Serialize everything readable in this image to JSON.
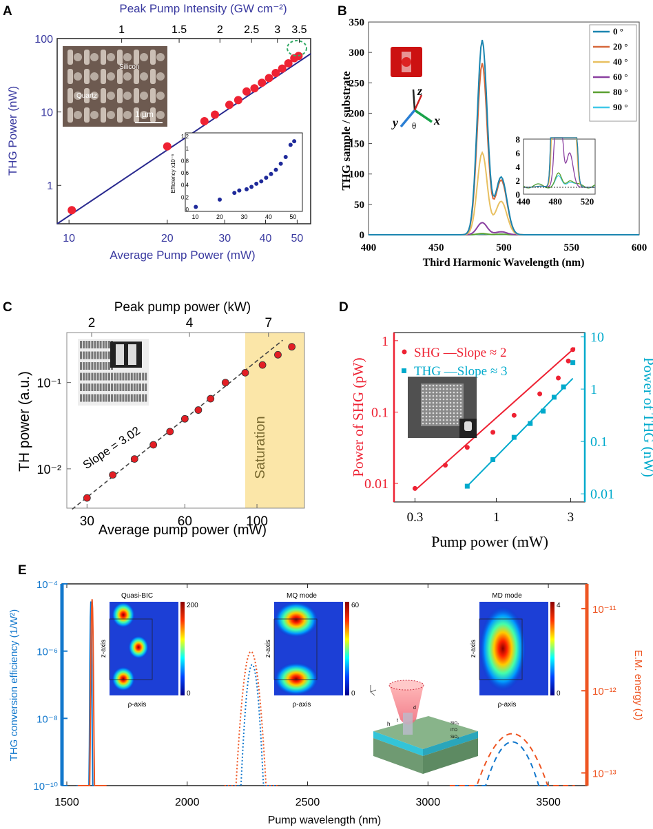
{
  "figure_title": "",
  "panels": {
    "A": {
      "label": "A",
      "inset_texts": {
        "silicon": "Silicon",
        "quartz": "Quartz",
        "scale": "1 µm"
      }
    },
    "B": {
      "label": "B",
      "angle_axes": {
        "x": "x",
        "y": "y",
        "z": "z",
        "theta": "θ"
      }
    },
    "C": {
      "label": "C",
      "slope_text": "Slope = 3.02",
      "saturation_text": "Saturation"
    },
    "D": {
      "label": "D"
    },
    "E": {
      "label": "E",
      "map_titles": [
        "Quasi-BIC",
        "MQ mode",
        "MD mode"
      ],
      "map_max": [
        "200",
        "60",
        "4"
      ],
      "map_min": "0",
      "map_xlabel": "ρ-axis",
      "map_ylabel": "z-axis",
      "schematic_labels": [
        "SiO₂",
        "ITO",
        "SiO₂",
        "h",
        "t",
        "d"
      ]
    }
  },
  "colors": {
    "navy": "#3a3aa0",
    "red_dot": "#ee2233",
    "teal": "#00aacc",
    "orange": "#ee5522",
    "e_blue": "#1177cc",
    "saturation": "#fbe6a8"
  },
  "chart_data": [
    {
      "panel": "A",
      "type": "scatter",
      "title": "",
      "xlabel": "Average Pump Power (mW)",
      "ylabel": "THG Power (nW)",
      "x2label": "Peak Pump Intensity (GW cm⁻²)",
      "xscale": "log",
      "yscale": "log",
      "xlim": [
        9.2,
        55
      ],
      "ylim": [
        0.3,
        100
      ],
      "xticks": [
        10,
        20,
        30,
        40,
        50
      ],
      "xticklabels": [
        "10",
        "20",
        "30",
        "40",
        "50"
      ],
      "yticks": [
        1,
        10,
        100
      ],
      "yticklabels": [
        "1",
        "10",
        "100"
      ],
      "x2ticks": [
        1,
        1.5,
        2,
        2.5,
        3,
        3.5
      ],
      "x2ticklabels": [
        "1",
        "1.5",
        "2",
        "2.5",
        "3",
        "3.5"
      ],
      "x": [
        10.2,
        20,
        26,
        28,
        31,
        33,
        35,
        37,
        39,
        41,
        43,
        45,
        47,
        49,
        50.5
      ],
      "y": [
        0.46,
        3.4,
        7.5,
        9.2,
        12.5,
        14.5,
        19,
        21,
        25,
        29,
        34,
        39,
        46,
        54,
        58
      ],
      "fit_line": {
        "x": [
          9.2,
          55
        ],
        "y": [
          0.3,
          62
        ]
      },
      "inset": {
        "type": "scatter",
        "ylabel": "Efficiency x10⁻⁶",
        "xlim": [
          10,
          55
        ],
        "ylim": [
          0,
          1.2
        ],
        "xticks": [
          10,
          20,
          30,
          40,
          50
        ],
        "xticklabels": [
          "10",
          "20",
          "30",
          "40",
          "50"
        ],
        "yticks": [
          0,
          0.2,
          0.4,
          0.6,
          0.8,
          1,
          1.2
        ],
        "yticklabels": [
          "0",
          "0.2",
          "0.4",
          "0.6",
          "0.8",
          "1",
          "1.2"
        ],
        "x": [
          10.2,
          20,
          26,
          28,
          31,
          33,
          35,
          37,
          39,
          41,
          43,
          45,
          47,
          49,
          50.5
        ],
        "y": [
          0.04,
          0.16,
          0.27,
          0.31,
          0.33,
          0.37,
          0.42,
          0.46,
          0.52,
          0.58,
          0.65,
          0.75,
          0.86,
          1.06,
          1.12
        ]
      }
    },
    {
      "panel": "B",
      "type": "line",
      "xlabel": "Third Harmonic Wavelength (nm)",
      "ylabel": "THG sample / substrate",
      "xlim": [
        400,
        600
      ],
      "ylim": [
        0,
        350
      ],
      "xticks": [
        400,
        450,
        500,
        550,
        600
      ],
      "xticklabels": [
        "400",
        "450",
        "500",
        "550",
        "600"
      ],
      "yticks": [
        0,
        50,
        100,
        150,
        200,
        250,
        300,
        350
      ],
      "yticklabels": [
        "0",
        "50",
        "100",
        "150",
        "200",
        "250",
        "300",
        "350"
      ],
      "legend": "top-right",
      "series": [
        {
          "name": "0 °",
          "color": "#1a85b0",
          "peak1": 320,
          "peak2": 95
        },
        {
          "name": "20 °",
          "color": "#d6683a",
          "peak1": 282,
          "peak2": 90
        },
        {
          "name": "40 °",
          "color": "#e8c060",
          "peak1": 135,
          "peak2": 55
        },
        {
          "name": "60 °",
          "color": "#8a3fa0",
          "peak1": 20,
          "peak2": 5
        },
        {
          "name": "80 °",
          "color": "#5aa030",
          "peak1": 2,
          "peak2": 1
        },
        {
          "name": "90 °",
          "color": "#40c8e8",
          "peak1": 1.5,
          "peak2": 0.8
        }
      ],
      "inset": {
        "xlim": [
          440,
          530
        ],
        "ylim": [
          0,
          8
        ],
        "xticks": [
          440,
          480,
          520
        ],
        "xticklabels": [
          "440",
          "480",
          "520"
        ],
        "yticks": [
          0,
          2,
          4,
          6,
          8
        ],
        "yticklabels": [
          "0",
          "2",
          "4",
          "6",
          "8"
        ]
      }
    },
    {
      "panel": "C",
      "type": "scatter",
      "xlabel": "Average pump power (mW)",
      "ylabel": "TH power (a.u.)",
      "x2label": "Peak pump power (kW)",
      "xscale": "log",
      "yscale": "log",
      "xlim": [
        26,
        140
      ],
      "ylim": [
        0.0035,
        0.38
      ],
      "xticks": [
        30,
        60,
        100
      ],
      "xticklabels": [
        "30",
        "60",
        "100"
      ],
      "x2ticks": [
        2,
        4,
        7
      ],
      "x2ticklabels": [
        "2",
        "4",
        "7"
      ],
      "yticks": [
        0.01,
        0.1
      ],
      "yticklabels": [
        "10⁻²",
        "10⁻¹"
      ],
      "x": [
        30,
        36,
        42,
        48,
        54,
        60,
        66,
        72,
        80,
        92,
        104,
        116,
        128
      ],
      "y": [
        0.0046,
        0.0085,
        0.013,
        0.019,
        0.027,
        0.038,
        0.048,
        0.065,
        0.1,
        0.13,
        0.16,
        0.21,
        0.26
      ],
      "fit_line": {
        "x": [
          27,
          120
        ],
        "y": [
          0.0034,
          0.31
        ]
      },
      "saturation_region": [
        92,
        140
      ]
    },
    {
      "panel": "D",
      "type": "scatter",
      "xlabel": "Pump power (mW)",
      "ylabel": "Power of SHG (pW)",
      "y2label": "Power of THG (nW)",
      "xscale": "log",
      "yscale": "log",
      "xlim": [
        0.22,
        3.7
      ],
      "ylim": [
        0.0055,
        1.3
      ],
      "y2lim": [
        0.007,
        12
      ],
      "xticks": [
        0.3,
        1,
        3
      ],
      "xticklabels": [
        "0.3",
        "1",
        "3"
      ],
      "yticks": [
        0.01,
        0.1,
        1
      ],
      "yticklabels": [
        "0.01",
        "0.1",
        "1"
      ],
      "y2ticks": [
        0.01,
        0.1,
        1,
        10
      ],
      "y2ticklabels": [
        "0.01",
        "0.1",
        "1",
        "10"
      ],
      "series": [
        {
          "name": "SHG",
          "legend": "SHG —Slope ≈ 2",
          "x": [
            0.3,
            0.47,
            0.65,
            0.95,
            1.3,
            1.9,
            2.5,
            2.9,
            3.1
          ],
          "y": [
            0.0085,
            0.018,
            0.032,
            0.052,
            0.09,
            0.18,
            0.3,
            0.52,
            0.75
          ],
          "fit": {
            "x": [
              0.3,
              3.2
            ],
            "y": [
              0.008,
              0.8
            ]
          }
        },
        {
          "name": "THG",
          "legend": "THG —Slope ≈ 3",
          "x": [
            0.65,
            0.95,
            1.3,
            1.65,
            2.0,
            2.35,
            2.7,
            3.1
          ],
          "y": [
            0.014,
            0.045,
            0.12,
            0.22,
            0.38,
            0.7,
            1.1,
            3.2
          ],
          "fit": {
            "x": [
              0.65,
              3.1
            ],
            "y": [
              0.014,
              1.6
            ]
          }
        }
      ]
    },
    {
      "panel": "E",
      "type": "line",
      "xlabel": "Pump wavelength (nm)",
      "ylabel": "THG conversion efficiency (1/W²)",
      "y2label": "E.M. energy (J)",
      "xlim": [
        1480,
        3660
      ],
      "yscale": "log",
      "ylim": [
        1e-10,
        0.0001
      ],
      "y2lim": [
        7e-14,
        2e-11
      ],
      "xticks": [
        1500,
        2000,
        2500,
        3000,
        3500
      ],
      "xticklabels": [
        "1500",
        "2000",
        "2500",
        "3000",
        "3500"
      ],
      "yticks": [
        1e-10,
        1e-08,
        1e-06,
        0.0001
      ],
      "yticklabels": [
        "10⁻¹⁰",
        "10⁻⁸",
        "10⁻⁶",
        "10⁻⁴"
      ],
      "y2ticks": [
        1e-13,
        1e-12,
        1e-11
      ],
      "y2ticklabels": [
        "10⁻¹³",
        "10⁻¹²",
        "10⁻¹¹"
      ],
      "series": [
        {
          "name": "THG efficiency",
          "axis": "left",
          "peaks": [
            {
              "center": 1600,
              "height": 3e-05
            },
            {
              "center": 2270,
              "height": 4e-07
            },
            {
              "center": 3350,
              "height": 2e-09
            }
          ]
        },
        {
          "name": "E.M. energy",
          "axis": "right",
          "peaks": [
            {
              "center": 1605,
              "height": 1.3e-11
            },
            {
              "center": 2265,
              "height": 3e-12
            },
            {
              "center": 3350,
              "height": 3e-13
            }
          ]
        }
      ]
    }
  ]
}
